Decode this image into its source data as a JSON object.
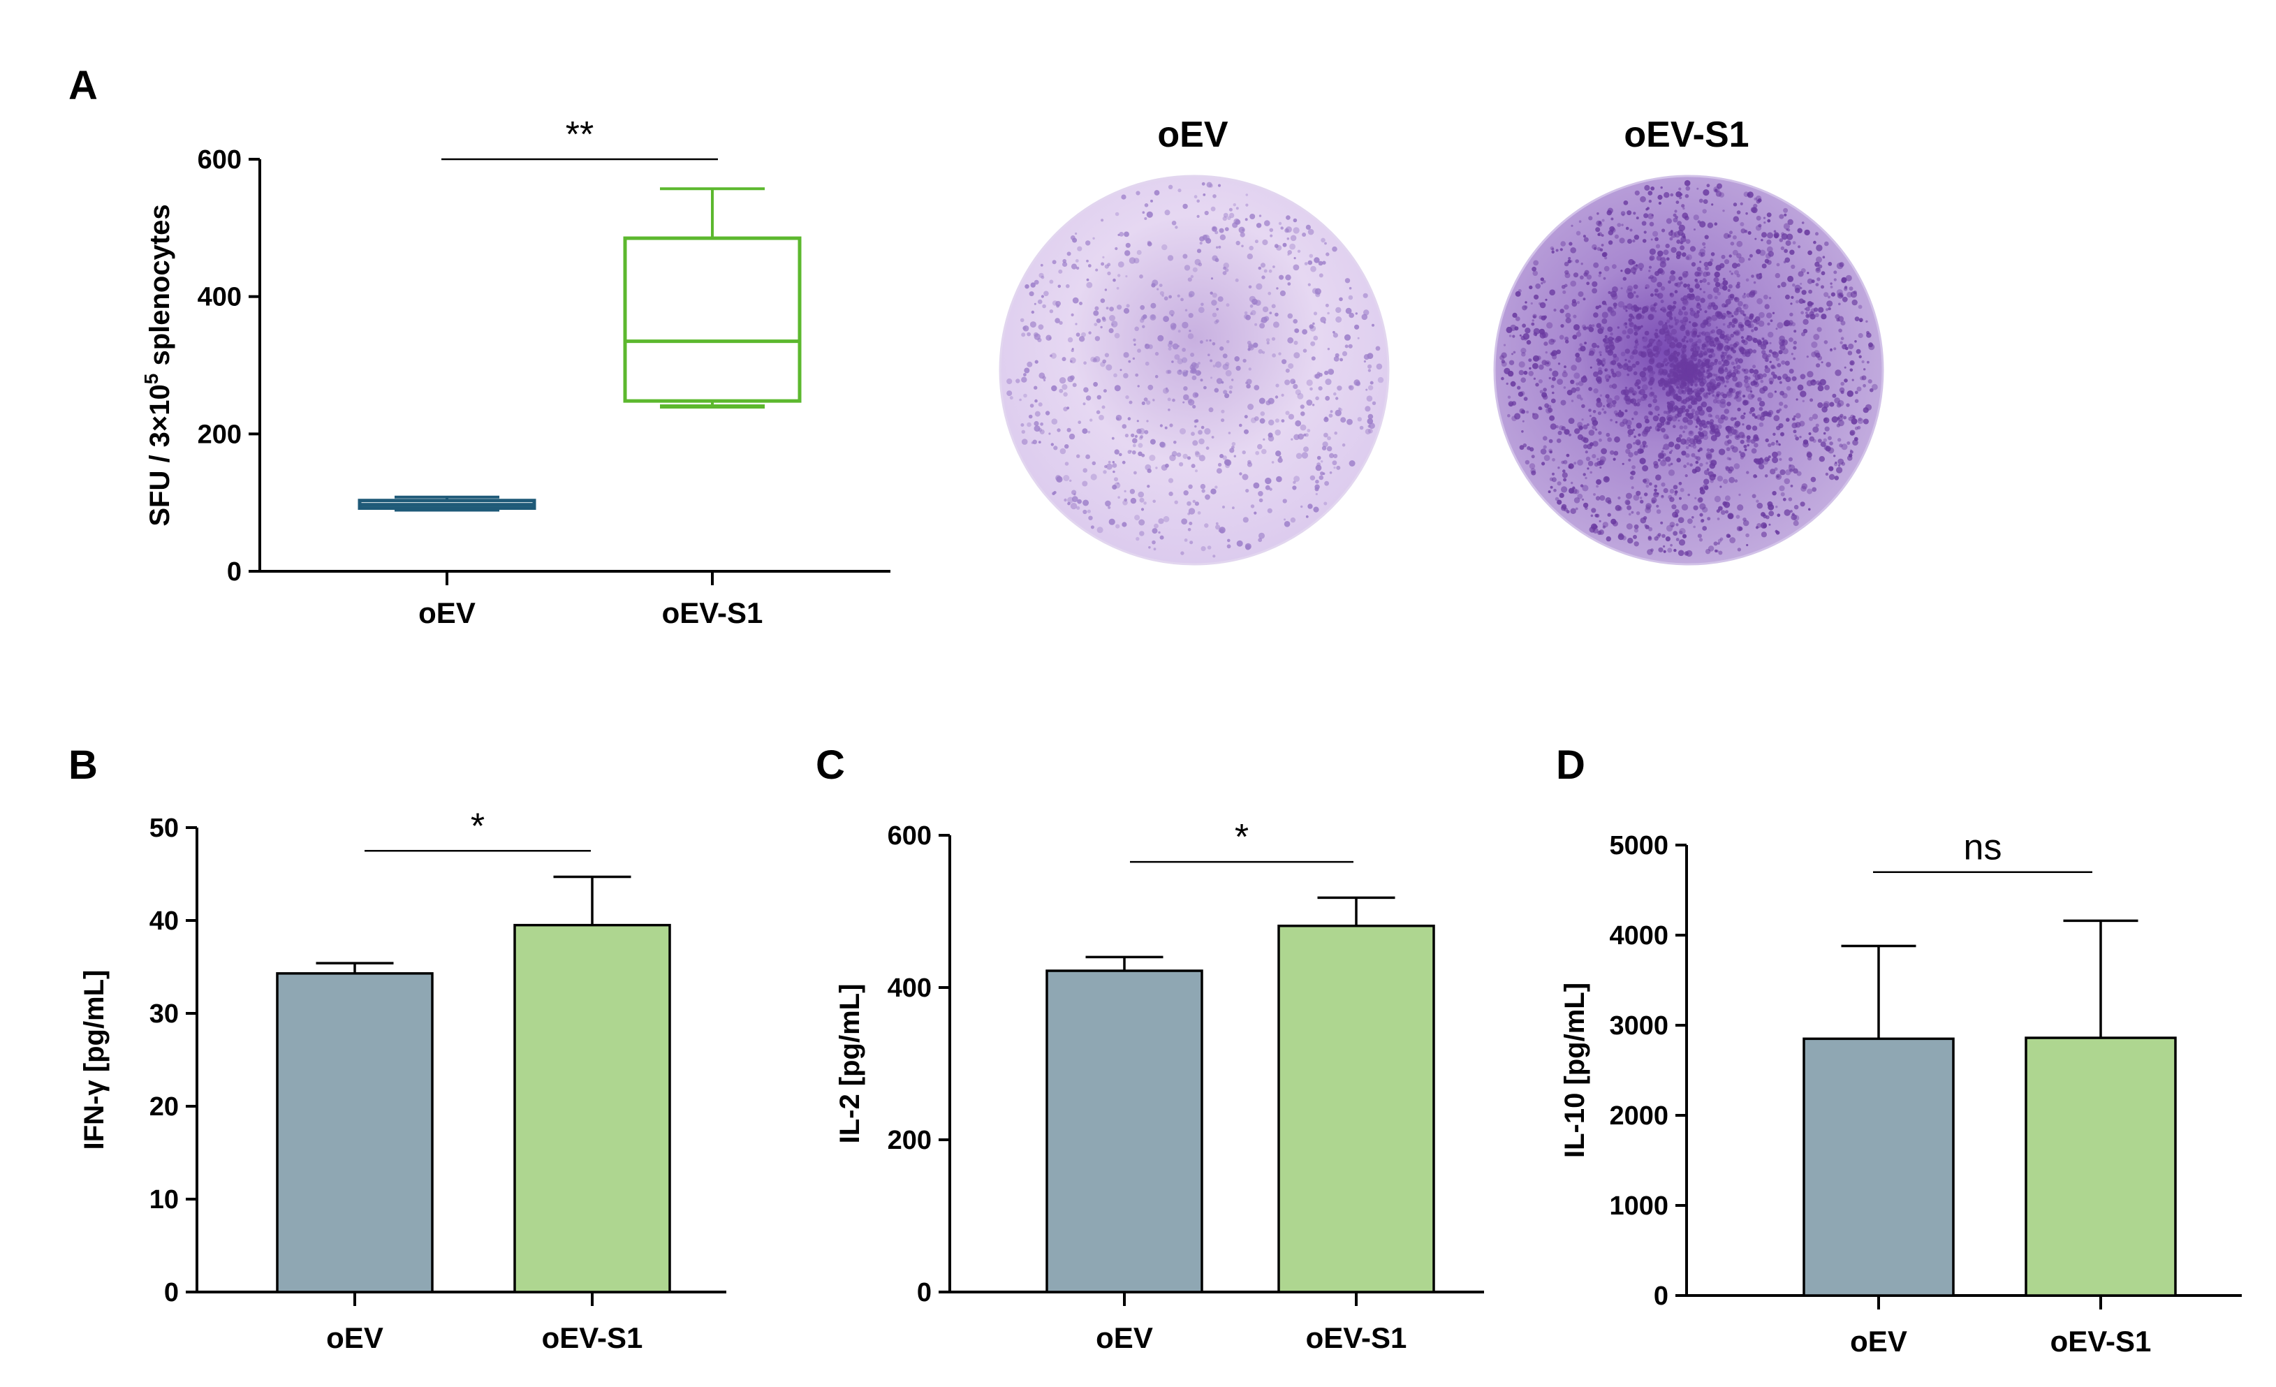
{
  "panels": {
    "A": "A",
    "B": "B",
    "C": "C",
    "D": "D"
  },
  "plates": {
    "left_title": "oEV",
    "right_title": "oEV-S1",
    "left_color": "#9c7ec9",
    "right_color": "#6a3aa0"
  },
  "chart_data": [
    {
      "id": "A",
      "type": "box",
      "ylabel_main": "SFU / 3×10",
      "ylabel_sup": "5",
      "ylabel_tail": " splenocytes",
      "ylim": [
        0,
        600
      ],
      "yticks": [
        0,
        200,
        400,
        600
      ],
      "categories": [
        "oEV",
        "oEV-S1"
      ],
      "boxes": [
        {
          "name": "oEV",
          "min": 90,
          "q1": 92,
          "median": 97,
          "q3": 103,
          "max": 108,
          "color": "#1f5a78"
        },
        {
          "name": "oEV-S1",
          "min": 240,
          "q1": 248,
          "median": 335,
          "q3": 485,
          "max": 557,
          "color": "#5cb82e"
        }
      ],
      "significance": "**",
      "sig_y": 600
    },
    {
      "id": "B",
      "type": "bar",
      "ylabel": "IFN-γ [pg/mL]",
      "ylim": [
        0,
        50
      ],
      "yticks": [
        0,
        10,
        20,
        30,
        40,
        50
      ],
      "categories": [
        "oEV",
        "oEV-S1"
      ],
      "values": [
        34.3,
        39.5
      ],
      "errors": [
        1.1,
        5.2
      ],
      "colors": [
        "#8fa7b3",
        "#aed690"
      ],
      "significance": "*",
      "sig_y": 47.5
    },
    {
      "id": "C",
      "type": "bar",
      "ylabel": "IL-2 [pg/mL]",
      "ylim": [
        0,
        600
      ],
      "yticks": [
        0,
        200,
        400,
        600
      ],
      "categories": [
        "oEV",
        "oEV-S1"
      ],
      "values": [
        422,
        481
      ],
      "errors": [
        18,
        37
      ],
      "colors": [
        "#8fa7b3",
        "#aed690"
      ],
      "significance": "*",
      "sig_y": 565
    },
    {
      "id": "D",
      "type": "bar",
      "ylabel": "IL-10 [pg/mL]",
      "ylim": [
        0,
        5000
      ],
      "yticks": [
        0,
        1000,
        2000,
        3000,
        4000,
        5000
      ],
      "categories": [
        "oEV",
        "oEV-S1"
      ],
      "values": [
        2850,
        2860
      ],
      "errors": [
        1030,
        1300
      ],
      "colors": [
        "#8fa7b3",
        "#aed690"
      ],
      "significance": "ns",
      "sig_y": 4700
    }
  ]
}
